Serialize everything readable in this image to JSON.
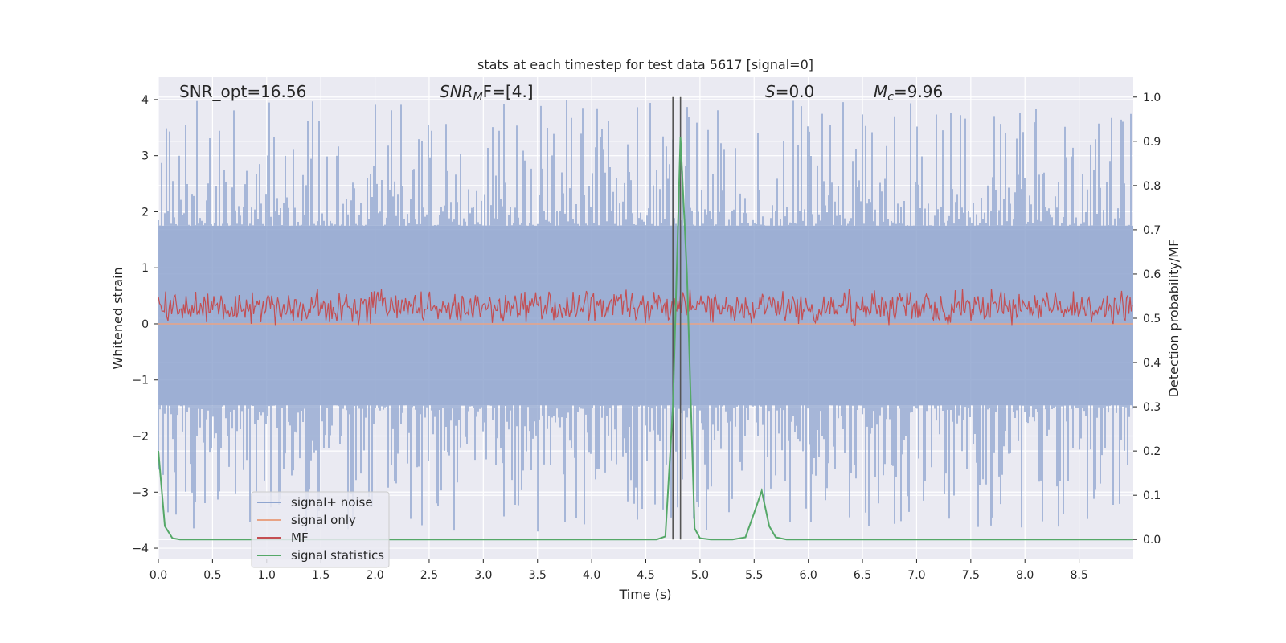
{
  "chart_data": {
    "type": "line",
    "title": "stats at each timestep for test data 5617 [signal=0]",
    "xlabel": "Time (s)",
    "ylabel_left": "Whitened strain",
    "ylabel_right": "Detection probability/MF",
    "xlim": [
      0.0,
      9.0
    ],
    "ylim_left": [
      -4.2,
      4.4
    ],
    "ylim_right": [
      -0.045,
      1.045
    ],
    "grid": true,
    "legend_position": "lower-left",
    "xticks": [
      "0.0",
      "0.5",
      "1.0",
      "1.5",
      "2.0",
      "2.5",
      "3.0",
      "3.5",
      "4.0",
      "4.5",
      "5.0",
      "5.5",
      "6.0",
      "6.5",
      "7.0",
      "7.5",
      "8.0",
      "8.5"
    ],
    "yticks_left": [
      "4",
      "3",
      "2",
      "1",
      "0",
      "−1",
      "−2",
      "−3",
      "−4"
    ],
    "yticks_right": [
      "1.0",
      "0.9",
      "0.8",
      "0.7",
      "0.6",
      "0.5",
      "0.4",
      "0.3",
      "0.2",
      "0.1",
      "0.0"
    ],
    "annotations": {
      "snr_opt": "SNR_opt=16.56",
      "snr_mf_base": "SNR",
      "snr_mf_sub": "M",
      "snr_mf_rest": "F=[4.]",
      "s_italic": "S",
      "s_rest": "=0.0",
      "mc_base": "M",
      "mc_sub": "c",
      "mc_rest": "=9.96"
    },
    "vertical_lines_x": [
      4.75,
      4.82
    ],
    "series": [
      {
        "name": "signal+ noise",
        "color": "#8fa5cf",
        "y_axis": "left",
        "kind": "noise",
        "envelope_upper": 1.75,
        "envelope_lower": -1.45,
        "peak_max": 4.0,
        "peak_min": -3.75
      },
      {
        "name": "signal only",
        "color": "#e8a385",
        "y_axis": "left",
        "constant": 0.0
      },
      {
        "name": "MF",
        "color": "#c44e52",
        "y_axis": "left",
        "kind": "noise",
        "center": 0.3,
        "amplitude": 0.6
      },
      {
        "name": "signal statistics",
        "color": "#55a868",
        "y_axis": "right",
        "x": [
          0.0,
          0.06,
          0.13,
          0.2,
          0.5,
          1.0,
          2.0,
          3.0,
          4.0,
          4.5,
          4.6,
          4.68,
          4.75,
          4.82,
          4.88,
          4.95,
          5.0,
          5.1,
          5.3,
          5.42,
          5.5,
          5.57,
          5.64,
          5.7,
          5.8,
          6.0,
          7.0,
          8.0,
          9.0
        ],
        "y": [
          0.2,
          0.03,
          0.003,
          0.0,
          0.0,
          0.0,
          0.0,
          0.0,
          0.0,
          0.0,
          0.0,
          0.007,
          0.3,
          0.91,
          0.6,
          0.025,
          0.003,
          0.0,
          0.0,
          0.005,
          0.06,
          0.11,
          0.03,
          0.005,
          0.0,
          0.0,
          0.0,
          0.0,
          0.0
        ]
      }
    ]
  }
}
